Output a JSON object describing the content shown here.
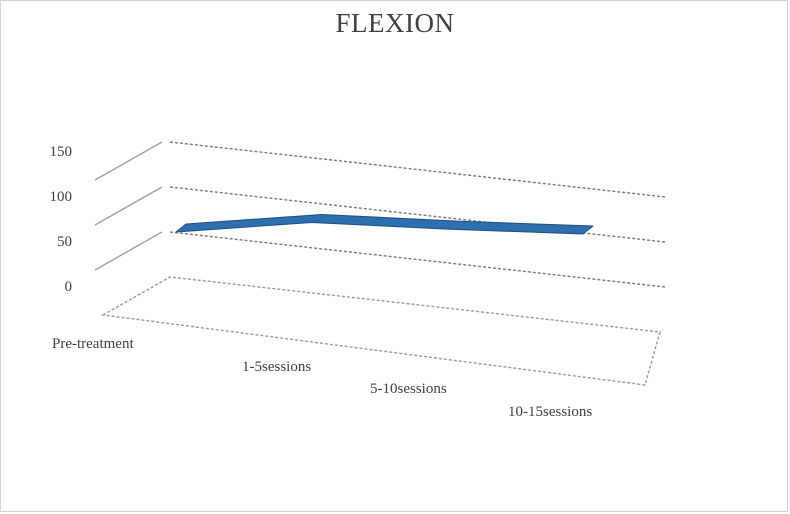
{
  "chart_data": {
    "type": "line",
    "view": "3d",
    "title": "FLEXION",
    "xlabel": "",
    "ylabel": "",
    "categories": [
      "Pre-treatment",
      "1-5sessions",
      "5-10sessions",
      "10-15sessions"
    ],
    "series": [
      {
        "values": [
          50,
          78,
          88,
          100
        ],
        "color": "#2e6fae"
      }
    ],
    "ylim": [
      0,
      150
    ],
    "yticks": [
      0,
      50,
      100,
      150
    ],
    "grid": true,
    "legend": "none"
  }
}
